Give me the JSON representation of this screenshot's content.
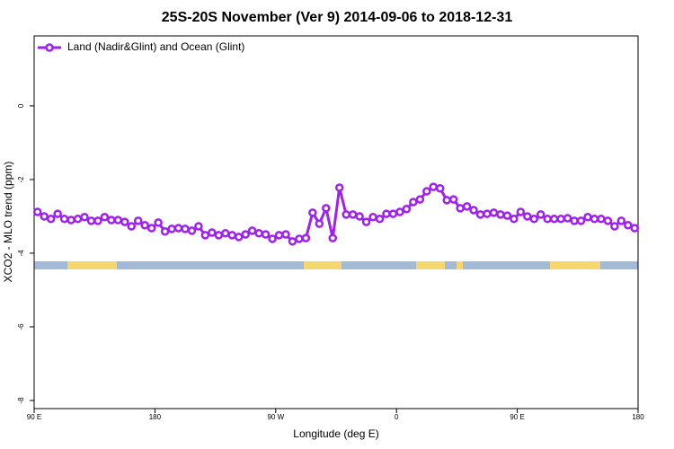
{
  "chart_data": {
    "type": "line",
    "title": "25S-20S November (Ver 9)   2014-09-06 to 2018-12-31",
    "xlabel": "Longitude (deg E)",
    "ylabel": "XCO2 - MLO trend (ppm)",
    "xlim": [
      90,
      540
    ],
    "ylim": [
      -8.22,
      1.9
    ],
    "xticks": [
      {
        "value": 90,
        "label": "90 E"
      },
      {
        "value": 180,
        "label": "180"
      },
      {
        "value": 270,
        "label": "90 W"
      },
      {
        "value": 360,
        "label": "0"
      },
      {
        "value": 450,
        "label": "90 E"
      },
      {
        "value": 540,
        "label": "180"
      }
    ],
    "yticks": [
      0,
      -2,
      -4,
      -6,
      -8
    ],
    "legend": "top-left",
    "x": [
      92.5,
      97.5,
      102.5,
      107.5,
      112.5,
      117.5,
      122.5,
      127.5,
      132.5,
      137.5,
      142.5,
      147.5,
      152.5,
      157.5,
      162.5,
      167.5,
      172.5,
      177.5,
      182.5,
      187.5,
      192.5,
      197.5,
      202.5,
      207.5,
      212.5,
      217.5,
      222.5,
      227.5,
      232.5,
      237.5,
      242.5,
      247.5,
      252.5,
      257.5,
      262.5,
      267.5,
      272.5,
      277.5,
      282.5,
      287.5,
      292.5,
      297.5,
      302.5,
      307.5,
      312.5,
      317.5,
      322.5,
      327.5,
      332.5,
      337.5,
      342.5,
      347.5,
      352.5,
      357.5,
      362.5,
      367.5,
      372.5,
      377.5,
      382.5,
      387.5,
      392.5,
      397.5,
      402.5,
      407.5,
      412.5,
      417.5,
      422.5,
      427.5,
      432.5,
      437.5,
      442.5,
      447.5,
      452.5,
      457.5,
      462.5,
      467.5,
      472.5,
      477.5,
      482.5,
      487.5,
      492.5,
      497.5,
      502.5,
      507.5,
      512.5,
      517.5,
      522.5,
      527.5,
      532.5,
      537.5
    ],
    "series": [
      {
        "name": "Land (Nadir&Glint) and Ocean (Glint)",
        "color": "#a020f0",
        "values": [
          -2.88,
          -3.0,
          -3.07,
          -2.93,
          -3.07,
          -3.1,
          -3.07,
          -3.02,
          -3.12,
          -3.12,
          -3.02,
          -3.1,
          -3.1,
          -3.15,
          -3.27,
          -3.12,
          -3.24,
          -3.32,
          -3.17,
          -3.41,
          -3.34,
          -3.32,
          -3.34,
          -3.39,
          -3.27,
          -3.51,
          -3.44,
          -3.51,
          -3.46,
          -3.51,
          -3.56,
          -3.49,
          -3.39,
          -3.46,
          -3.49,
          -3.61,
          -3.51,
          -3.49,
          -3.68,
          -3.61,
          -3.59,
          -2.9,
          -3.2,
          -2.78,
          -3.59,
          -2.22,
          -2.95,
          -2.95,
          -3.0,
          -3.15,
          -3.02,
          -3.07,
          -2.93,
          -2.93,
          -2.88,
          -2.8,
          -2.61,
          -2.54,
          -2.32,
          -2.2,
          -2.24,
          -2.56,
          -2.54,
          -2.78,
          -2.73,
          -2.83,
          -2.95,
          -2.93,
          -2.9,
          -2.95,
          -2.98,
          -3.07,
          -2.88,
          -3.0,
          -3.07,
          -2.95,
          -3.07,
          -3.07,
          -3.07,
          -3.05,
          -3.12,
          -3.12,
          -3.02,
          -3.07,
          -3.07,
          -3.12,
          -3.27,
          -3.12,
          -3.24,
          -3.32
        ]
      }
    ]
  }
}
